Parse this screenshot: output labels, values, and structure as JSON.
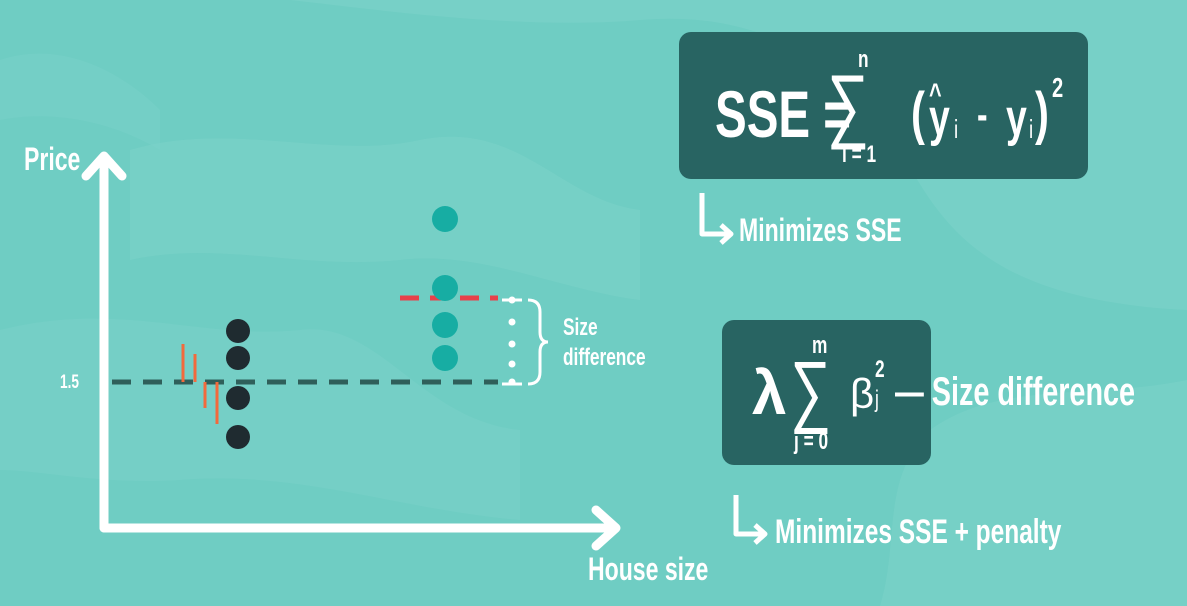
{
  "axes": {
    "y_label": "Price",
    "x_label": "House size",
    "y_tick": "1.5"
  },
  "annotation": {
    "bracket_label_line1": "Size",
    "bracket_label_line2": "difference"
  },
  "sse_box": {
    "lhs": "SSE =",
    "sum_upper": "n",
    "sum_lower": "i = 1",
    "open_paren": "(",
    "yhat": "y",
    "hat": "^",
    "yhat_sub": "i",
    "minus": "-",
    "y": "y",
    "y_sub": "i",
    "close_paren": ")",
    "power": "2",
    "caption": "Minimizes SSE"
  },
  "penalty_box": {
    "lambda": "λ",
    "sum_upper": "m",
    "sum_lower": "j = 0",
    "beta": "β",
    "beta_sub": "j",
    "beta_sup": "2",
    "side_label": "— Size difference",
    "caption": "Minimizes SSE + penalty"
  },
  "colors": {
    "background": "#6fcdc3",
    "box": "#286462",
    "dark_points": "#1f2b30",
    "teal_points": "#17ada3",
    "baseline": "#2f5f5a",
    "red_line": "#e8404a",
    "residual": "#f26a3c",
    "white": "#ffffff"
  },
  "icons": [
    "sigma-icon",
    "down-right-arrow-icon"
  ]
}
